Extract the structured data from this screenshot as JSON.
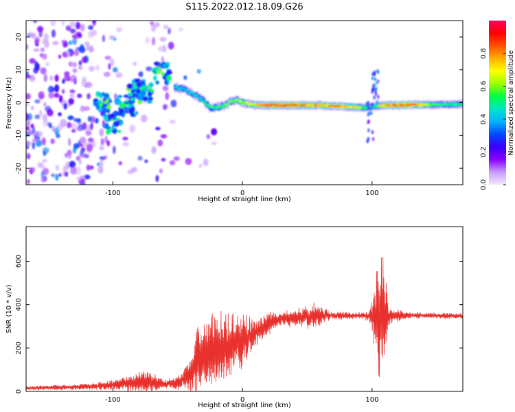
{
  "title": "S115.2022.012.18.09.G26",
  "chart_data": [
    {
      "type": "heatmap",
      "xlabel": "Height of straight line (km)",
      "ylabel": "Frequency (Hz)",
      "xlim": [
        -167,
        170
      ],
      "ylim": [
        -25,
        25
      ],
      "xticks": [
        -100,
        0,
        100
      ],
      "yticks": [
        -20,
        -10,
        0,
        10,
        20
      ],
      "colorbar": {
        "label": "Normalized spectral amplitude",
        "range": [
          0,
          1
        ],
        "ticks": [
          "0.0",
          "0.2",
          "0.4",
          "0.6",
          "0.8"
        ],
        "colormap": "rainbow",
        "colors": [
          "#f2e6ff",
          "#c89cff",
          "#8a00ff",
          "#3a00ff",
          "#0048ff",
          "#00b4ff",
          "#00e6c8",
          "#00ff40",
          "#9cff00",
          "#ffff00",
          "#ffb000",
          "#ff5000",
          "#ff0000",
          "#ff0060"
        ]
      },
      "ridge_frequency_hz": [
        [
          -50,
          4.5
        ],
        [
          -45,
          4.0
        ],
        [
          -40,
          3.0
        ],
        [
          -35,
          2.0
        ],
        [
          -30,
          0.5
        ],
        [
          -25,
          -1.5
        ],
        [
          -20,
          -1.5
        ],
        [
          -15,
          -1.0
        ],
        [
          -10,
          0.0
        ],
        [
          -5,
          1.0
        ],
        [
          0,
          0.0
        ],
        [
          10,
          -0.6
        ],
        [
          20,
          -0.8
        ],
        [
          40,
          -0.8
        ],
        [
          60,
          -0.8
        ],
        [
          80,
          -1.2
        ],
        [
          95,
          -1.5
        ],
        [
          100,
          -1.2
        ],
        [
          110,
          -0.8
        ],
        [
          140,
          -0.6
        ],
        [
          170,
          -0.5
        ]
      ],
      "ridge_amplitude": [
        [
          -50,
          0.5
        ],
        [
          -40,
          0.45
        ],
        [
          -30,
          0.5
        ],
        [
          -20,
          0.55
        ],
        [
          -10,
          0.6
        ],
        [
          0,
          0.65
        ],
        [
          10,
          0.7
        ],
        [
          20,
          0.9
        ],
        [
          40,
          0.9
        ],
        [
          55,
          0.8
        ],
        [
          70,
          0.85
        ],
        [
          85,
          0.75
        ],
        [
          95,
          0.6
        ],
        [
          100,
          0.5
        ],
        [
          110,
          0.85
        ],
        [
          130,
          0.95
        ],
        [
          150,
          0.55
        ],
        [
          170,
          0.55
        ]
      ]
    },
    {
      "type": "line",
      "xlabel": "Height of straight line (km)",
      "ylabel": "SNR (10 * v/v)",
      "xlim": [
        -167,
        170
      ],
      "ylim": [
        0,
        760
      ],
      "xticks": [
        -100,
        0,
        100
      ],
      "yticks": [
        0,
        200,
        400,
        600
      ],
      "series": [
        {
          "color": "#e8302c",
          "envelope": [
            [
              -167,
              15
            ],
            [
              -130,
              20
            ],
            [
              -110,
              25
            ],
            [
              -90,
              35
            ],
            [
              -75,
              45
            ],
            [
              -60,
              35
            ],
            [
              -50,
              40
            ],
            [
              -40,
              80
            ],
            [
              -35,
              140
            ],
            [
              -30,
              170
            ],
            [
              -25,
              190
            ],
            [
              -20,
              200
            ],
            [
              -10,
              210
            ],
            [
              0,
              230
            ],
            [
              10,
              270
            ],
            [
              20,
              310
            ],
            [
              30,
              335
            ],
            [
              40,
              340
            ],
            [
              50,
              345
            ],
            [
              60,
              350
            ],
            [
              70,
              350
            ],
            [
              80,
              348
            ],
            [
              90,
              350
            ],
            [
              100,
              348
            ],
            [
              103,
              340
            ],
            [
              107,
              340
            ],
            [
              110,
              348
            ],
            [
              130,
              350
            ],
            [
              150,
              350
            ],
            [
              170,
              348
            ]
          ],
          "noise_amplitude": [
            [
              -167,
              8
            ],
            [
              -120,
              10
            ],
            [
              -90,
              25
            ],
            [
              -75,
              45
            ],
            [
              -60,
              15
            ],
            [
              -45,
              30
            ],
            [
              -35,
              120
            ],
            [
              -20,
              130
            ],
            [
              -5,
              110
            ],
            [
              10,
              60
            ],
            [
              30,
              25
            ],
            [
              55,
              45
            ],
            [
              70,
              15
            ],
            [
              90,
              12
            ],
            [
              98,
              20
            ],
            [
              103,
              180
            ],
            [
              108,
              250
            ],
            [
              113,
              30
            ],
            [
              130,
              10
            ],
            [
              170,
              10
            ]
          ]
        }
      ]
    }
  ]
}
